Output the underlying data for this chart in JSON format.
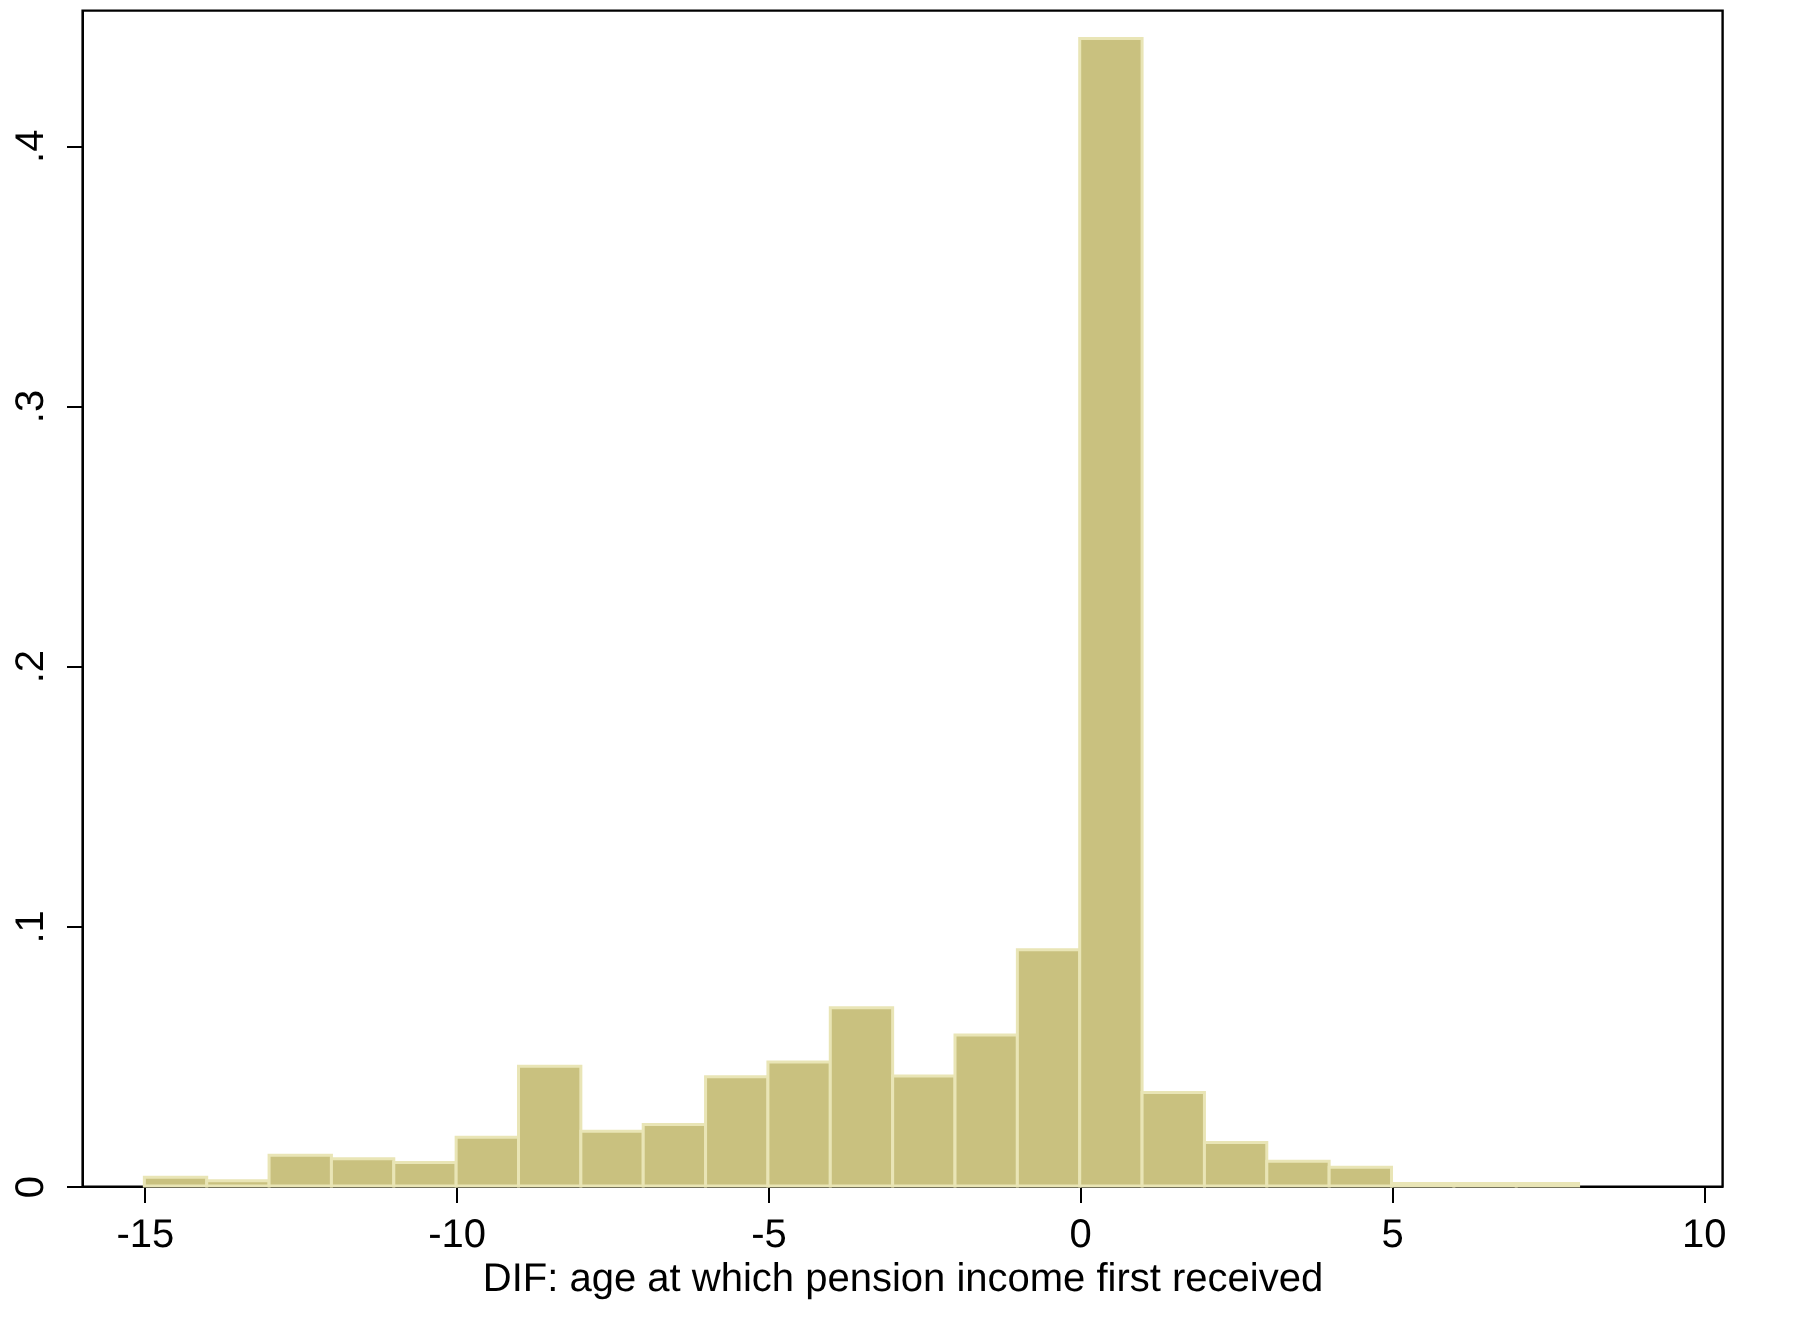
{
  "chart_data": {
    "type": "histogram",
    "xlabel": "DIF: age at which pension income first received",
    "bins": [
      -15,
      -14,
      -13,
      -12,
      -11,
      -10,
      -9,
      -8,
      -7,
      -6,
      -5,
      -4,
      -3,
      -2,
      -1,
      0,
      1,
      2,
      3,
      4,
      5,
      6,
      7,
      8
    ],
    "values": [
      0.0034,
      0.002,
      0.0118,
      0.0105,
      0.009,
      0.0187,
      0.046,
      0.021,
      0.0236,
      0.042,
      0.0477,
      0.0685,
      0.0423,
      0.058,
      0.0908,
      0.441,
      0.0359,
      0.0167,
      0.0095,
      0.0072,
      0.001,
      0.001,
      0.001
    ],
    "color": "#c9c17f",
    "xlim": [
      -16,
      10.3
    ],
    "xticks": [
      -15,
      -10,
      -5,
      0,
      5,
      10
    ],
    "ylim": [
      0,
      0.452
    ],
    "yticks": [
      {
        "value": 0,
        "label": "0"
      },
      {
        "value": 0.1,
        "label": ".1"
      },
      {
        "value": 0.2,
        "label": ".2"
      },
      {
        "value": 0.3,
        "label": ".3"
      },
      {
        "value": 0.4,
        "label": ".4"
      }
    ],
    "grid": false
  }
}
